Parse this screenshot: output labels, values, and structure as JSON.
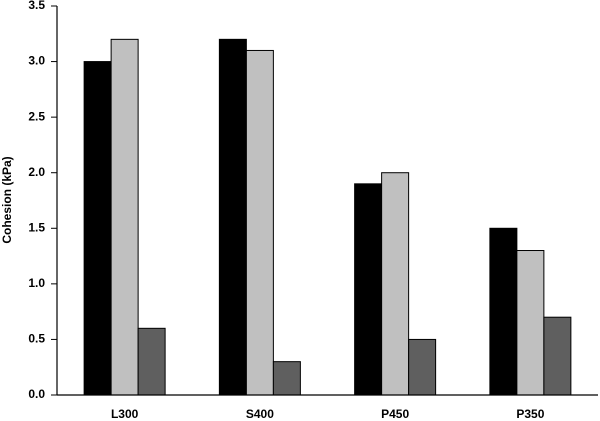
{
  "chart_data": {
    "type": "bar",
    "ylabel": "Cohesion (kPa)",
    "categories": [
      "L300",
      "S400",
      "P450",
      "P350"
    ],
    "series": [
      {
        "color": "#000000",
        "values": [
          3.0,
          3.2,
          1.9,
          1.5
        ]
      },
      {
        "color": "#c0c0c0",
        "values": [
          3.2,
          3.1,
          2.0,
          1.3
        ]
      },
      {
        "color": "#5f5f5f",
        "values": [
          0.6,
          0.3,
          0.5,
          0.7
        ]
      }
    ],
    "ylim": [
      0,
      3.5
    ],
    "yticks": [
      {
        "value": 0,
        "label": "0.0"
      },
      0.5,
      {
        "value": 1,
        "label": "1.0"
      },
      1.5,
      {
        "value": 2,
        "label": "2.0"
      },
      2.5,
      {
        "value": 3,
        "label": "3.0"
      },
      3.5
    ],
    "grid": false
  }
}
